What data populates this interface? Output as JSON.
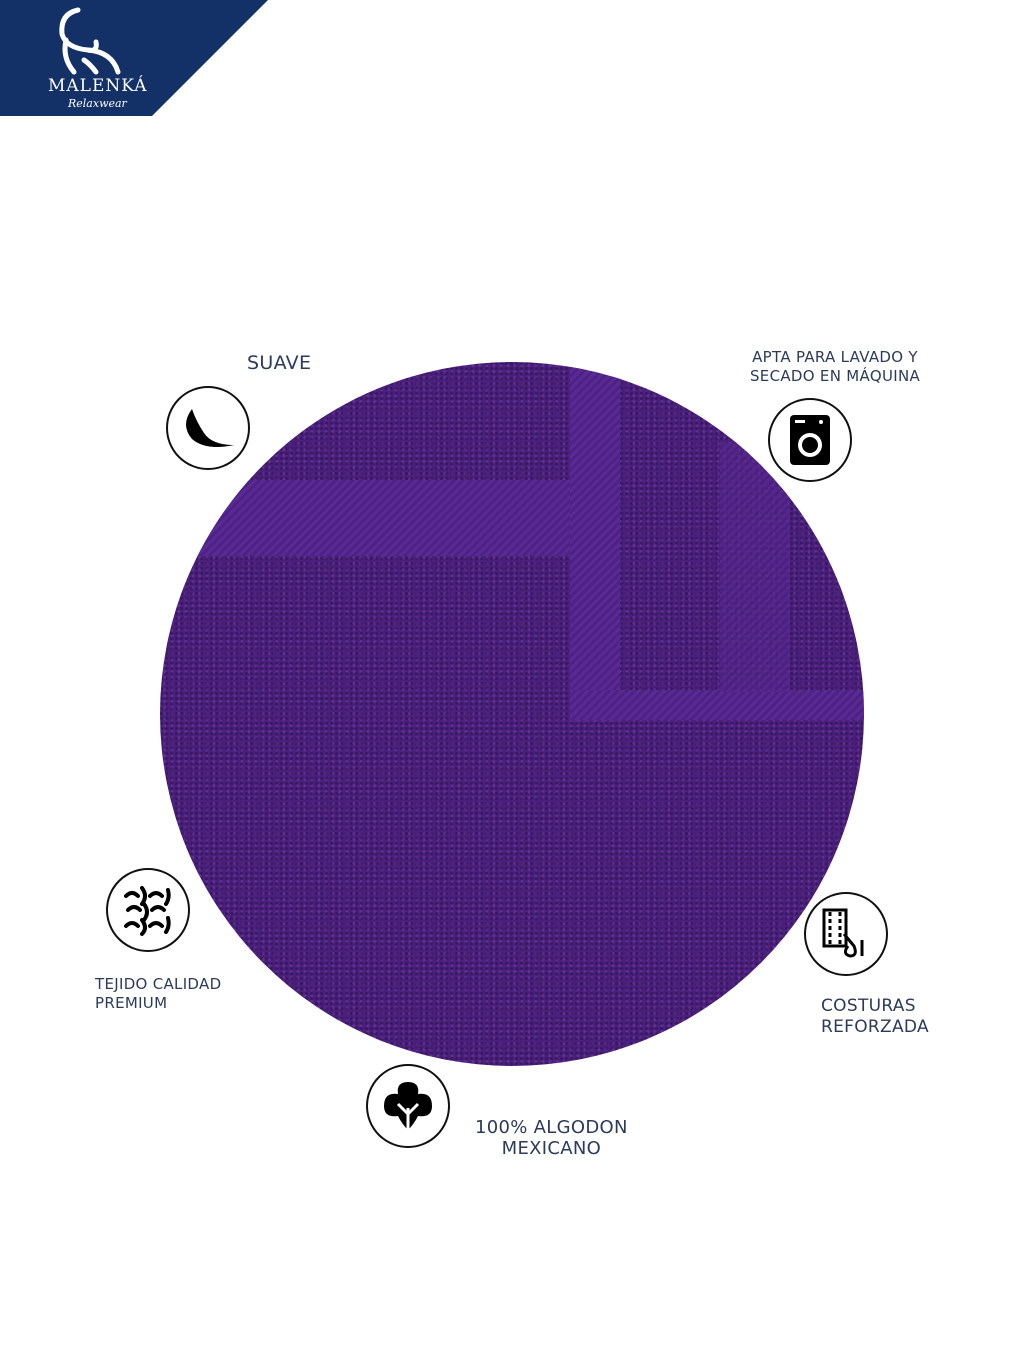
{
  "brand": {
    "name": "MALENKÁ",
    "tagline": "Relaxwear",
    "color": "#143167"
  },
  "product_color": "#4b1f7c",
  "features": [
    {
      "label": "SUAVE",
      "icon": "feather-icon"
    },
    {
      "label_line1": "APTA PARA LAVADO Y",
      "label_line2": "SECADO EN MÁQUINA",
      "icon": "washing-machine-icon"
    },
    {
      "label_line1": "TEJIDO CALIDAD",
      "label_line2": "PREMIUM",
      "icon": "weave-icon"
    },
    {
      "label_line1": "COSTURAS",
      "label_line2": "REFORZADA",
      "icon": "sewing-icon"
    },
    {
      "label_line1": "100% ALGODON",
      "label_line2": "MEXICANO",
      "icon": "cotton-icon"
    }
  ]
}
